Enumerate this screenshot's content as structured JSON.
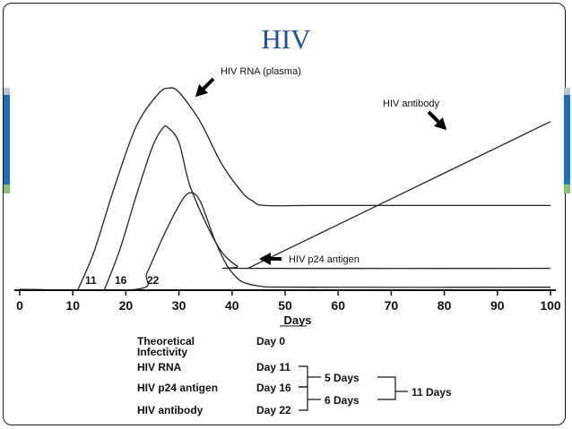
{
  "slide": {
    "title": "HIV"
  },
  "chart_data": {
    "type": "line",
    "xlabel": "Days",
    "ylabel": "",
    "xlim": [
      0,
      100
    ],
    "x_ticks": [
      0,
      10,
      20,
      30,
      40,
      50,
      60,
      70,
      80,
      90,
      100
    ],
    "grid": false,
    "series": [
      {
        "name": "HIV RNA (plasma)",
        "points": [
          [
            11,
            0
          ],
          [
            14,
            0.18
          ],
          [
            18,
            0.5
          ],
          [
            22,
            0.78
          ],
          [
            26,
            0.93
          ],
          [
            28,
            0.96
          ],
          [
            30,
            0.94
          ],
          [
            34,
            0.8
          ],
          [
            38,
            0.6
          ],
          [
            42,
            0.46
          ],
          [
            44,
            0.42
          ],
          [
            46,
            0.4
          ],
          [
            55,
            0.4
          ],
          [
            70,
            0.4
          ],
          [
            100,
            0.4
          ]
        ]
      },
      {
        "name": "",
        "points": [
          [
            16,
            0
          ],
          [
            19,
            0.2
          ],
          [
            22,
            0.45
          ],
          [
            25,
            0.68
          ],
          [
            27,
            0.77
          ],
          [
            28,
            0.77
          ],
          [
            30,
            0.7
          ],
          [
            32,
            0.5
          ],
          [
            35,
            0.32
          ],
          [
            38,
            0.18
          ],
          [
            41,
            0.11
          ],
          [
            43,
            0.1
          ],
          [
            100,
            0.1
          ]
        ]
      },
      {
        "name": "HIV p24 antigen",
        "points": [
          [
            0,
            0
          ],
          [
            22,
            0
          ],
          [
            24,
            0.08
          ],
          [
            27,
            0.25
          ],
          [
            30,
            0.4
          ],
          [
            32,
            0.46
          ],
          [
            34,
            0.42
          ],
          [
            37,
            0.22
          ],
          [
            40,
            0.08
          ],
          [
            44,
            0.02
          ],
          [
            55,
            0.01
          ],
          [
            100,
            0.01
          ]
        ]
      },
      {
        "name": "HIV antibody",
        "points": [
          [
            43,
            0.1
          ],
          [
            100,
            0.8
          ]
        ]
      }
    ],
    "annotations": [
      {
        "text": "HIV RNA (plasma)"
      },
      {
        "text": "HIV antibody"
      },
      {
        "text": "HIV p24 antigen"
      },
      {
        "text": "11"
      },
      {
        "text": "16"
      },
      {
        "text": "22"
      }
    ]
  },
  "timeline": {
    "rows": [
      {
        "label": "Theoretical\nInfectivity",
        "day": "Day 0"
      },
      {
        "label": "HIV RNA",
        "day": "Day 11"
      },
      {
        "label": "HIV p24 antigen",
        "day": "Day 16"
      },
      {
        "label": "HIV antibody",
        "day": "Day 22"
      }
    ],
    "intervals": [
      {
        "label": "5 Days"
      },
      {
        "label": "6 Days"
      },
      {
        "label": "11 Days"
      }
    ]
  },
  "colors": {
    "title": "#1f4e9c",
    "accent_blue": "#1f6eb7",
    "accent_green": "#8cc277",
    "accent_gray": "#b9c6d3",
    "ink": "#111111"
  }
}
